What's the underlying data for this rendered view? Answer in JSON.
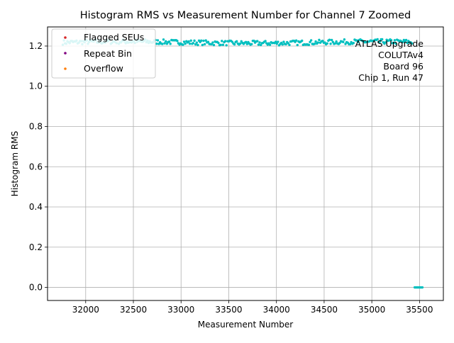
{
  "chart_data": {
    "type": "scatter",
    "title": "Histogram RMS vs Measurement Number for Channel 7 Zoomed",
    "xlabel": "Measurement Number",
    "ylabel": "Histogram RMS",
    "xlim": [
      31600,
      35750
    ],
    "ylim": [
      -0.065,
      1.295
    ],
    "xticks": [
      32000,
      32500,
      33000,
      33500,
      34000,
      34500,
      35000,
      35500
    ],
    "yticks": [
      0.0,
      0.2,
      0.4,
      0.6,
      0.8,
      1.0,
      1.2
    ],
    "xtick_labels": [
      "32000",
      "32500",
      "33000",
      "33500",
      "34000",
      "34500",
      "35000",
      "35500"
    ],
    "ytick_labels": [
      "0.0",
      "0.2",
      "0.4",
      "0.6",
      "0.8",
      "1.0",
      "1.2"
    ],
    "grid": true,
    "legend_position": "top-left",
    "legend": [
      {
        "name": "Flagged SEUs",
        "color": "#d62728"
      },
      {
        "name": "Repeat Bin",
        "color": "#800080"
      },
      {
        "name": "Overflow",
        "color": "#ff7f0e"
      }
    ],
    "annotation": [
      "ATLAS Upgrade",
      "COLUTAv4",
      "Board 96",
      "Chip 1, Run 47"
    ],
    "annotation_position": "top-right",
    "main_series": {
      "color": "#00bfbf",
      "x_start": 31760,
      "x_end": 35430,
      "step": 12,
      "base_y": 1.218,
      "jitter": 0.012
    },
    "zero_series": {
      "color": "#00bfbf",
      "x": [
        35450,
        35460,
        35470,
        35480,
        35490,
        35500,
        35510,
        35520,
        35530
      ],
      "y": 0.0
    }
  }
}
